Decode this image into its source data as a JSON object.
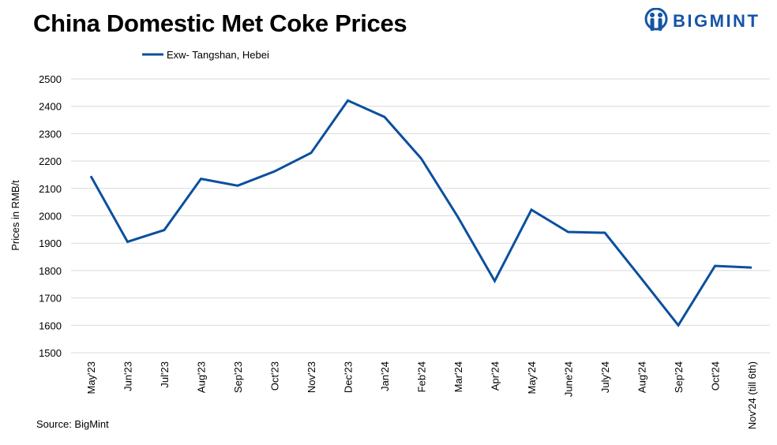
{
  "header": {
    "title": "China Domestic Met Coke Prices",
    "logo_text": "BIGMINT"
  },
  "footer": {
    "source": "Source: BigMint"
  },
  "colors": {
    "series": "#0b4f9e",
    "grid": "#d9d9d9",
    "logo": "#1554a8"
  },
  "chart_data": {
    "type": "line",
    "title": "China Domestic Met Coke Prices",
    "xlabel": "",
    "ylabel": "Prices in RMB/t",
    "ylim": [
      1500,
      2500
    ],
    "yticks": [
      1500,
      1600,
      1700,
      1800,
      1900,
      2000,
      2100,
      2200,
      2300,
      2400,
      2500
    ],
    "grid": true,
    "legend_position": "top-left",
    "categories": [
      "May'23",
      "Jun'23",
      "Jul'23",
      "Aug'23",
      "Sep'23",
      "Oct'23",
      "Nov'23",
      "Dec'23",
      "Jan'24",
      "Feb'24",
      "Mar'24",
      "Apr'24",
      "May'24",
      "June'24",
      "July'24",
      "Aug'24",
      "Sep'24",
      "Oct'24",
      "Nov'24 (till 6th)"
    ],
    "series": [
      {
        "name": "Exw- Tangshan, Hebei",
        "values": [
          2145,
          1905,
          1948,
          2135,
          2110,
          2162,
          2230,
          2421,
          2361,
          2209,
          1995,
          1762,
          2022,
          1941,
          1938,
          1770,
          1600,
          1817,
          1811
        ]
      }
    ]
  }
}
